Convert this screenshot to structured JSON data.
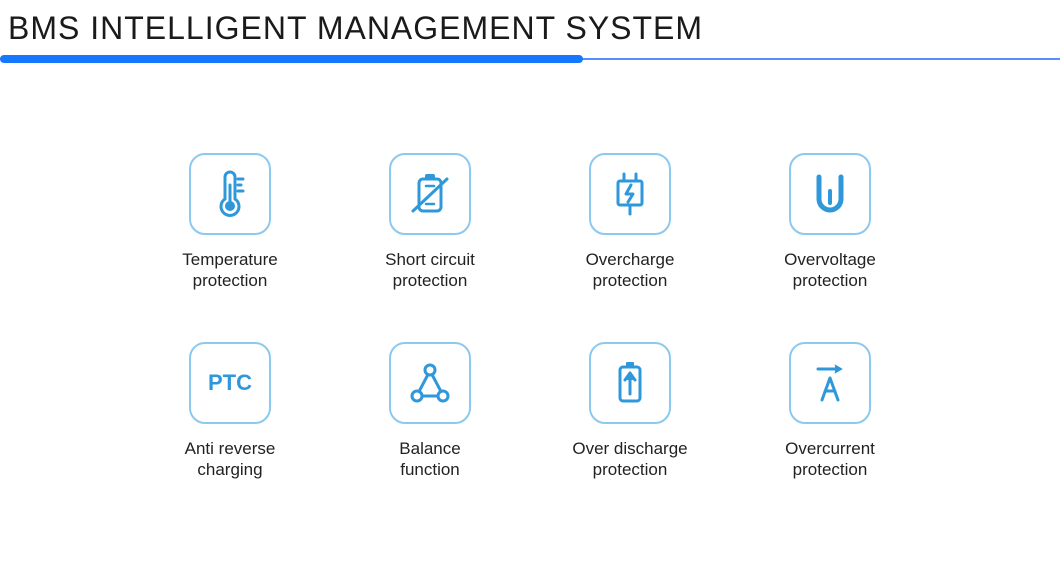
{
  "title": "BMS INTELLIGENT MANAGEMENT SYSTEM",
  "colors": {
    "accent": "#1677ff",
    "icon": "#2f98da",
    "iconBorder": "#8cc9ee",
    "ruleThin": "#5b8cff",
    "text": "#1a1a1a"
  },
  "layout": {
    "ruleThickWidthPct": 55,
    "iconBoxSize": 82,
    "iconBoxRadius": 16,
    "iconBoxBorderWidth": 2,
    "gridCols": 4
  },
  "features": [
    {
      "id": "temperature",
      "label": "Temperature\nprotection",
      "icon": "thermometer-icon"
    },
    {
      "id": "short-circuit",
      "label": "Short circuit\nprotection",
      "icon": "short-circuit-icon"
    },
    {
      "id": "overcharge",
      "label": "Overcharge\nprotection",
      "icon": "overcharge-icon"
    },
    {
      "id": "overvoltage",
      "label": "Overvoltage\nprotection",
      "icon": "overvoltage-icon"
    },
    {
      "id": "anti-reverse",
      "label": "Anti reverse\ncharging",
      "icon": "ptc-icon"
    },
    {
      "id": "balance",
      "label": "Balance\nfunction",
      "icon": "balance-icon"
    },
    {
      "id": "over-discharge",
      "label": "Over discharge\nprotection",
      "icon": "over-discharge-icon"
    },
    {
      "id": "overcurrent",
      "label": "Overcurrent\nprotection",
      "icon": "overcurrent-icon"
    }
  ]
}
